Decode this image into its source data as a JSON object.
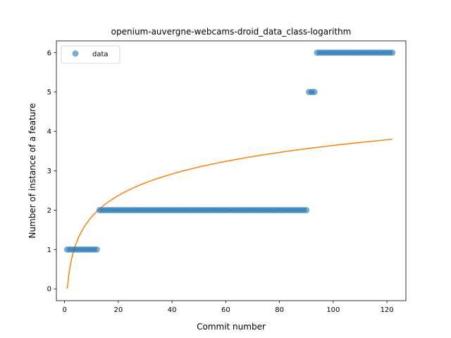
{
  "chart_data": {
    "type": "scatter",
    "title": "openium-auvergne-webcams-droid_data_class-logarithm",
    "xlabel": "Commit number",
    "ylabel": "Number of instance of a feature",
    "xlim": [
      -3.05,
      127.05
    ],
    "ylim": [
      -0.3,
      6.3
    ],
    "xticks": [
      0,
      20,
      40,
      60,
      80,
      100,
      120
    ],
    "yticks": [
      0,
      1,
      2,
      3,
      4,
      5,
      6
    ],
    "grid": false,
    "legend_position": "upper-left",
    "colors": {
      "data": "#1f77b4",
      "fit": "#ff7f0e"
    },
    "series": [
      {
        "name": "data",
        "kind": "scatter",
        "segments": [
          {
            "x_start": 1,
            "x_end": 12,
            "y": 1
          },
          {
            "x_start": 13,
            "x_end": 90,
            "y": 2
          },
          {
            "x_start": 91,
            "x_end": 93,
            "y": 5
          },
          {
            "x_start": 94,
            "x_end": 122,
            "y": 6
          }
        ]
      },
      {
        "kind": "line",
        "function": "logarithmic",
        "a": 0.791,
        "x_start": 1,
        "x_end": 122
      }
    ]
  }
}
